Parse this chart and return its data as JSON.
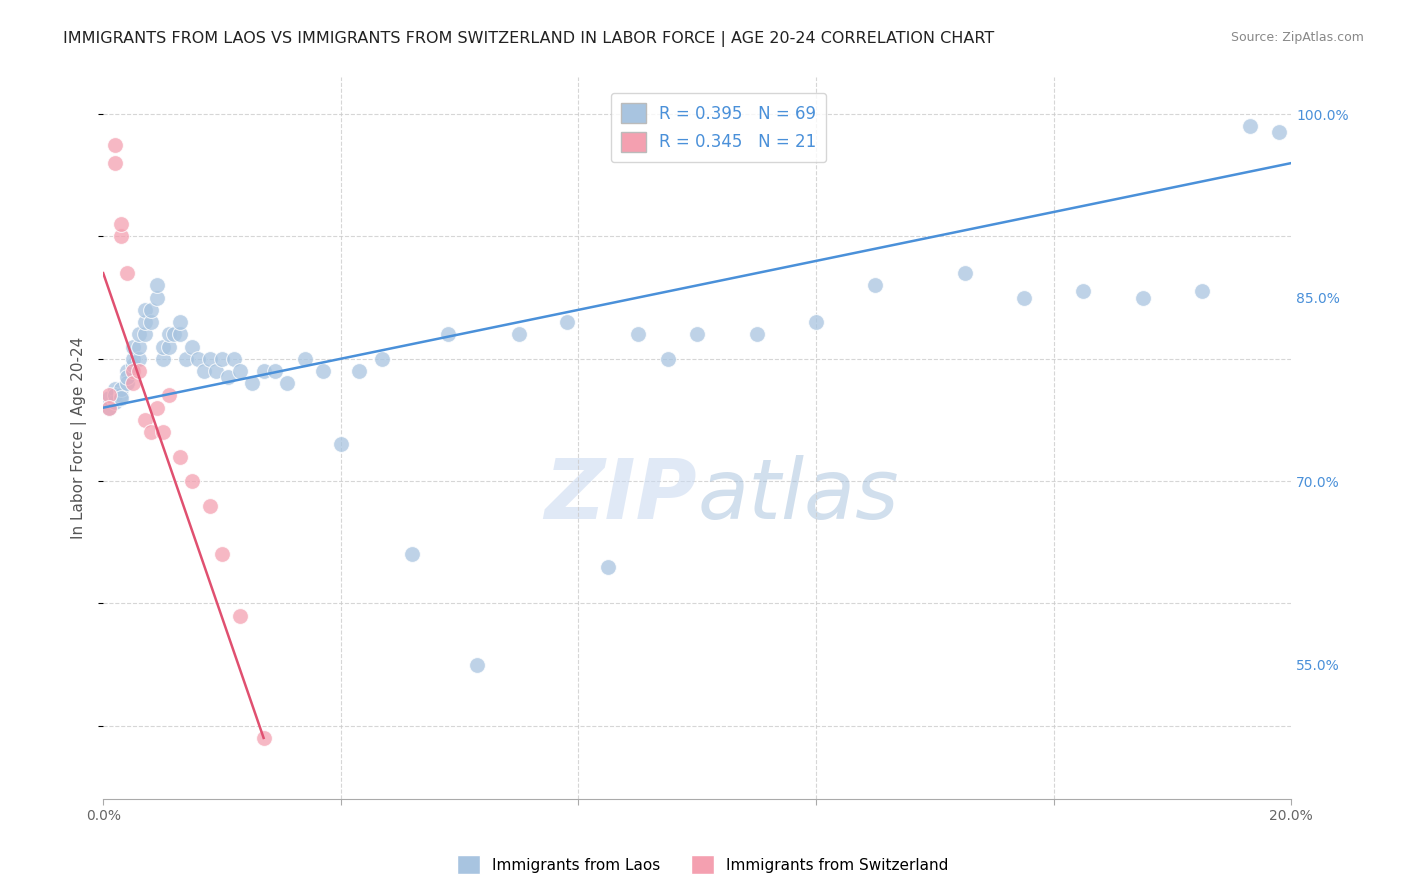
{
  "title": "IMMIGRANTS FROM LAOS VS IMMIGRANTS FROM SWITZERLAND IN LABOR FORCE | AGE 20-24 CORRELATION CHART",
  "source": "Source: ZipAtlas.com",
  "ylabel": "In Labor Force | Age 20-24",
  "x_min": 0.0,
  "x_max": 0.2,
  "y_min": 0.44,
  "y_max": 1.03,
  "x_ticks": [
    0.0,
    0.04,
    0.08,
    0.12,
    0.16,
    0.2
  ],
  "x_tick_labels": [
    "0.0%",
    "",
    "",
    "",
    "",
    "20.0%"
  ],
  "y_ticks_right": [
    0.55,
    0.7,
    0.85,
    1.0
  ],
  "y_tick_labels_right": [
    "55.0%",
    "70.0%",
    "85.0%",
    "100.0%"
  ],
  "laos_R": 0.395,
  "laos_N": 69,
  "swiss_R": 0.345,
  "swiss_N": 21,
  "laos_color": "#a8c4e0",
  "swiss_color": "#f4a0b0",
  "laos_line_color": "#4a90d9",
  "swiss_line_color": "#e05070",
  "legend_label_laos": "Immigrants from Laos",
  "legend_label_swiss": "Immigrants from Switzerland",
  "laos_scatter_x": [
    0.001,
    0.001,
    0.002,
    0.002,
    0.002,
    0.003,
    0.003,
    0.003,
    0.004,
    0.004,
    0.004,
    0.005,
    0.005,
    0.005,
    0.006,
    0.006,
    0.006,
    0.007,
    0.007,
    0.007,
    0.008,
    0.008,
    0.009,
    0.009,
    0.01,
    0.01,
    0.011,
    0.011,
    0.012,
    0.013,
    0.013,
    0.014,
    0.015,
    0.016,
    0.017,
    0.018,
    0.019,
    0.02,
    0.021,
    0.022,
    0.023,
    0.025,
    0.027,
    0.029,
    0.031,
    0.034,
    0.037,
    0.04,
    0.043,
    0.047,
    0.052,
    0.058,
    0.063,
    0.07,
    0.078,
    0.085,
    0.09,
    0.095,
    0.1,
    0.11,
    0.12,
    0.13,
    0.145,
    0.155,
    0.165,
    0.175,
    0.185,
    0.193,
    0.198
  ],
  "laos_scatter_y": [
    0.768,
    0.76,
    0.775,
    0.765,
    0.77,
    0.77,
    0.775,
    0.768,
    0.79,
    0.78,
    0.785,
    0.795,
    0.8,
    0.81,
    0.8,
    0.81,
    0.82,
    0.82,
    0.83,
    0.84,
    0.83,
    0.84,
    0.85,
    0.86,
    0.8,
    0.81,
    0.81,
    0.82,
    0.82,
    0.82,
    0.83,
    0.8,
    0.81,
    0.8,
    0.79,
    0.8,
    0.79,
    0.8,
    0.785,
    0.8,
    0.79,
    0.78,
    0.79,
    0.79,
    0.78,
    0.8,
    0.79,
    0.73,
    0.79,
    0.8,
    0.64,
    0.82,
    0.55,
    0.82,
    0.83,
    0.63,
    0.82,
    0.8,
    0.82,
    0.82,
    0.83,
    0.86,
    0.87,
    0.85,
    0.855,
    0.85,
    0.855,
    0.99,
    0.985
  ],
  "swiss_scatter_x": [
    0.001,
    0.001,
    0.002,
    0.002,
    0.003,
    0.003,
    0.004,
    0.005,
    0.005,
    0.006,
    0.007,
    0.008,
    0.009,
    0.01,
    0.011,
    0.013,
    0.015,
    0.018,
    0.02,
    0.023,
    0.027
  ],
  "swiss_scatter_y": [
    0.77,
    0.76,
    0.975,
    0.96,
    0.9,
    0.91,
    0.87,
    0.79,
    0.78,
    0.79,
    0.75,
    0.74,
    0.76,
    0.74,
    0.77,
    0.72,
    0.7,
    0.68,
    0.64,
    0.59,
    0.49
  ],
  "laos_trendline_x": [
    0.0,
    0.2
  ],
  "laos_trendline_y": [
    0.76,
    0.96
  ],
  "swiss_trendline_x": [
    0.0,
    0.027
  ],
  "swiss_trendline_y": [
    0.87,
    0.49
  ],
  "watermark_zip": "ZIP",
  "watermark_atlas": "atlas",
  "background_color": "#ffffff",
  "grid_color": "#cccccc",
  "title_fontsize": 11.5,
  "axis_label_fontsize": 11,
  "tick_fontsize": 10,
  "legend_fontsize": 12,
  "source_fontsize": 9
}
